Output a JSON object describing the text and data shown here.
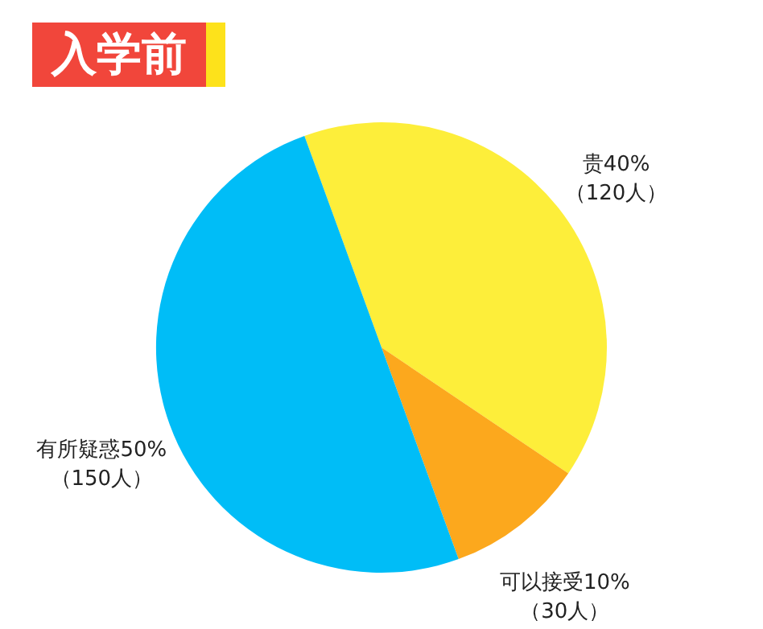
{
  "chart_data": {
    "type": "pie",
    "title": "入学前",
    "categories": [
      "贵",
      "可以接受",
      "有所疑惑"
    ],
    "values": [
      40,
      10,
      50
    ],
    "colors": [
      "#fdee3a",
      "#fca81d",
      "#00bdf7"
    ],
    "value_labels": [
      "40%\n（120人）",
      "10%\n（30人）",
      "50%\n（150人）"
    ]
  }
}
